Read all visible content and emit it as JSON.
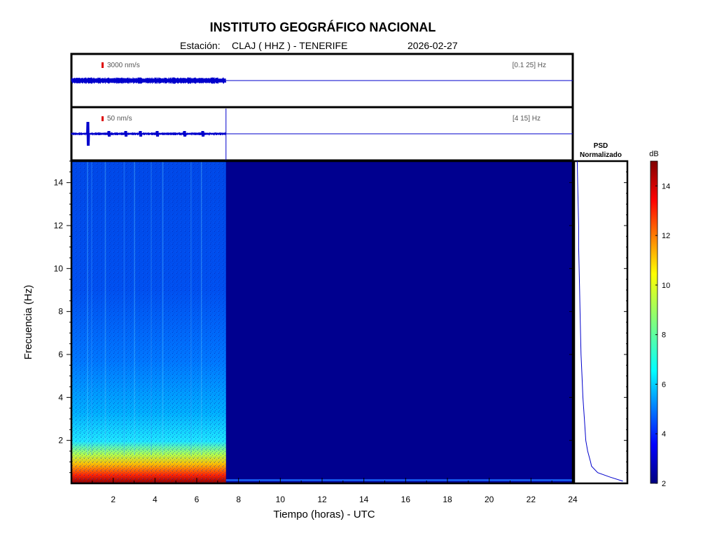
{
  "header": {
    "title": "INSTITUTO GEOGRÁFICO NACIONAL",
    "station_prefix": "Estación:",
    "station": "CLAJ ( HHZ ) - TENERIFE",
    "date": "2026-02-27"
  },
  "chart_data": [
    {
      "type": "line",
      "name": "seismogram-broadband",
      "scale_label": "3000 nm/s",
      "band_label": "[0.1 25] Hz",
      "x_range_hours": [
        0,
        24
      ],
      "data_end_hours": 7.4
    },
    {
      "type": "line",
      "name": "seismogram-filtered",
      "scale_label": "50 nm/s",
      "band_label": "[4 15] Hz",
      "x_range_hours": [
        0,
        24
      ],
      "data_end_hours": 7.4,
      "events_hours": [
        0.8,
        1.8,
        2.6,
        3.3,
        4.1,
        5.4,
        6.3
      ]
    },
    {
      "type": "heatmap",
      "name": "spectrogram",
      "xlabel": "Tiempo (horas) - UTC",
      "ylabel": "Frecuencia  (Hz)",
      "xlim": [
        0,
        24
      ],
      "ylim": [
        0,
        15
      ],
      "x_ticks": [
        2,
        4,
        6,
        8,
        10,
        12,
        14,
        16,
        18,
        20,
        22,
        24
      ],
      "y_ticks": [
        2,
        4,
        6,
        8,
        10,
        12,
        14
      ],
      "data_end_hours": 7.4,
      "colorscale": "jet",
      "colorbar": {
        "label": "dB",
        "min": 2,
        "max": 15,
        "ticks": [
          2,
          4,
          6,
          8,
          10,
          12,
          14
        ]
      },
      "no_data_color": "#00008f"
    },
    {
      "type": "line",
      "name": "psd",
      "title_line1": "PSD",
      "title_line2": "Normalizado",
      "ylim": [
        0,
        15
      ],
      "frequency_hz": [
        0.1,
        0.3,
        0.5,
        0.8,
        1,
        1.5,
        2,
        3,
        4,
        5,
        6,
        7,
        8,
        9,
        10,
        11,
        12,
        13,
        14,
        15
      ],
      "normalized_value": [
        0.98,
        0.7,
        0.45,
        0.32,
        0.3,
        0.24,
        0.2,
        0.17,
        0.14,
        0.12,
        0.1,
        0.09,
        0.08,
        0.07,
        0.06,
        0.05,
        0.05,
        0.04,
        0.03,
        0.02
      ]
    }
  ]
}
